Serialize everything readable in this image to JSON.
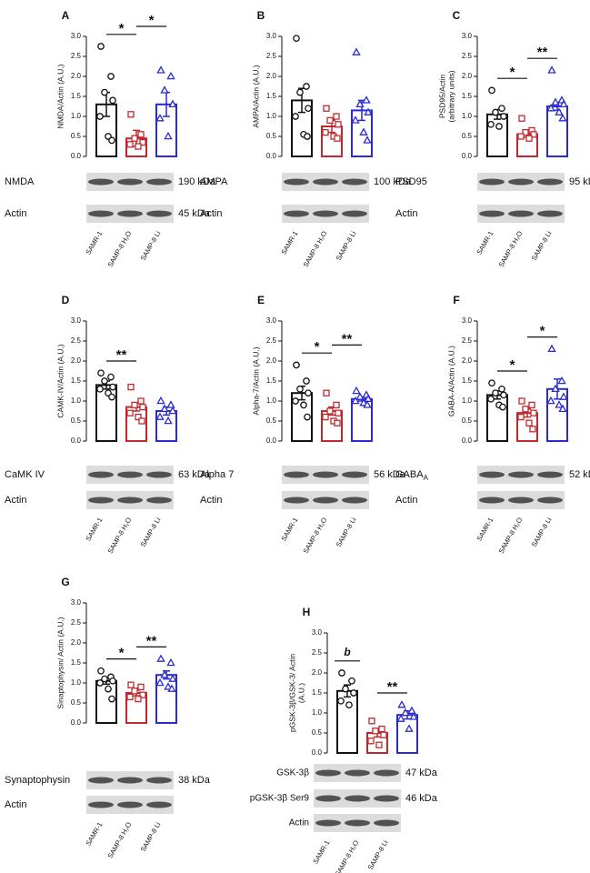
{
  "chart_data": [
    {
      "type": "bar",
      "panel": "A",
      "y_label": [
        "NMDA/Actin (A.U.)"
      ],
      "categories": [
        "SAMR-1",
        "SAMP-8 H₂O",
        "SAMP-8 Li"
      ],
      "colors": [
        "#111111",
        "#c0282d",
        "#2a2ad0"
      ],
      "markers": [
        "circle",
        "square",
        "triangle"
      ],
      "values": [
        1.3,
        0.45,
        1.3
      ],
      "errors": [
        0.3,
        0.2,
        0.3
      ],
      "points": [
        [
          2.75,
          2.0,
          1.6,
          1.4,
          1.0,
          0.5,
          0.4
        ],
        [
          1.05,
          0.55,
          0.45,
          0.35,
          0.3,
          0.25
        ],
        [
          2.15,
          2.0,
          1.65,
          1.3,
          0.95,
          0.5
        ]
      ],
      "ylim": [
        0,
        3
      ],
      "yticks": [
        {
          "value": 0,
          "label": "0.0"
        },
        0.5,
        {
          "value": 1,
          "label": "1.0"
        },
        1.5,
        {
          "value": 2,
          "label": "2.0"
        },
        2.5,
        {
          "value": 3,
          "label": "3.0"
        }
      ],
      "annotations": [
        {
          "text": "*",
          "bars": [
            0,
            1
          ]
        },
        {
          "text": "*",
          "bars": [
            1,
            2
          ]
        }
      ],
      "blots": [
        {
          "label": "NMDA",
          "kda": "190 kDa"
        },
        {
          "label": "Actin",
          "kda": "45 kDa"
        }
      ]
    },
    {
      "type": "bar",
      "panel": "B",
      "y_label": [
        "AMPA/Actin (A.U.)"
      ],
      "categories": [
        "SAMR-1",
        "SAMP-8 H₂O",
        "SAMP-8 Li"
      ],
      "colors": [
        "#111111",
        "#c0282d",
        "#2a2ad0"
      ],
      "markers": [
        "circle",
        "square",
        "triangle"
      ],
      "values": [
        1.4,
        0.75,
        1.15
      ],
      "errors": [
        0.3,
        0.15,
        0.25
      ],
      "points": [
        [
          2.95,
          1.75,
          1.6,
          1.2,
          1.0,
          0.55,
          0.5
        ],
        [
          1.2,
          1.0,
          0.9,
          0.8,
          0.6,
          0.5,
          0.45
        ],
        [
          2.6,
          1.4,
          1.3,
          1.1,
          0.9,
          0.6,
          0.4
        ]
      ],
      "ylim": [
        0,
        3
      ],
      "yticks": [
        {
          "value": 0,
          "label": "0.0"
        },
        0.5,
        {
          "value": 1,
          "label": "1.0"
        },
        1.5,
        {
          "value": 2,
          "label": "2.0"
        },
        2.5,
        {
          "value": 3,
          "label": "3.0"
        }
      ],
      "annotations": [],
      "blots": [
        {
          "label": "AMPA",
          "kda": "100 kDa"
        },
        {
          "label": "Actin"
        }
      ]
    },
    {
      "type": "bar",
      "panel": "C",
      "y_label": [
        "PSD95/Actin",
        "(arbitrary units)"
      ],
      "categories": [
        "SAMR-1",
        "SAMP-8 H₂O",
        "SAMP-8 Li"
      ],
      "colors": [
        "#111111",
        "#c0282d",
        "#2a2ad0"
      ],
      "markers": [
        "circle",
        "square",
        "triangle"
      ],
      "values": [
        1.05,
        0.55,
        1.25
      ],
      "errors": [
        0.12,
        0.07,
        0.1
      ],
      "points": [
        [
          1.65,
          1.2,
          1.1,
          1.0,
          0.8,
          0.75
        ],
        [
          0.95,
          0.65,
          0.6,
          0.55,
          0.5,
          0.45
        ],
        [
          2.15,
          1.4,
          1.35,
          1.3,
          1.2,
          1.1,
          0.95
        ]
      ],
      "ylim": [
        0,
        3
      ],
      "yticks": [
        {
          "value": 0,
          "label": "0.0"
        },
        0.5,
        {
          "value": 1,
          "label": "1.0"
        },
        1.5,
        {
          "value": 2,
          "label": "2.0"
        },
        2.5,
        {
          "value": 3,
          "label": "3.0"
        }
      ],
      "annotations": [
        {
          "text": "*",
          "bars": [
            0,
            1
          ]
        },
        {
          "text": "**",
          "bars": [
            1,
            2
          ]
        }
      ],
      "blots": [
        {
          "label": "PSD95",
          "kda": "95 kDa"
        },
        {
          "label": "Actin"
        }
      ]
    },
    {
      "type": "bar",
      "panel": "D",
      "y_label": [
        "CAMK-IV/Actin (A.U.)"
      ],
      "categories": [
        "SAMR-1",
        "SAMP-8 H₂O",
        "SAMP-8 Li"
      ],
      "colors": [
        "#111111",
        "#c0282d",
        "#2a2ad0"
      ],
      "markers": [
        "circle",
        "square",
        "triangle"
      ],
      "values": [
        1.4,
        0.85,
        0.75
      ],
      "errors": [
        0.1,
        0.1,
        0.1
      ],
      "points": [
        [
          1.7,
          1.6,
          1.5,
          1.35,
          1.3,
          1.2,
          1.1
        ],
        [
          1.35,
          1.0,
          0.9,
          0.85,
          0.7,
          0.6,
          0.5
        ],
        [
          1.0,
          0.9,
          0.8,
          0.75,
          0.6,
          0.5
        ]
      ],
      "ylim": [
        0,
        3
      ],
      "yticks": [
        {
          "value": 0,
          "label": "0.0"
        },
        0.5,
        {
          "value": 1,
          "label": "1.0"
        },
        1.5,
        {
          "value": 2,
          "label": "2.0"
        },
        2.5,
        {
          "value": 3,
          "label": "3.0"
        }
      ],
      "annotations": [
        {
          "text": "**",
          "bars": [
            0,
            1
          ]
        }
      ],
      "blots": [
        {
          "label": "CaMK IV",
          "kda": "63 kDa"
        },
        {
          "label": "Actin"
        }
      ]
    },
    {
      "type": "bar",
      "panel": "E",
      "y_label": [
        "Alpha-7/Actin (A.U.)"
      ],
      "categories": [
        "SAMR-1",
        "SAMP-8 H₂O",
        "SAMP-8 Li"
      ],
      "colors": [
        "#111111",
        "#c0282d",
        "#2a2ad0"
      ],
      "markers": [
        "circle",
        "square",
        "triangle"
      ],
      "values": [
        1.2,
        0.75,
        1.05
      ],
      "errors": [
        0.17,
        0.1,
        0.05
      ],
      "points": [
        [
          1.9,
          1.5,
          1.3,
          1.2,
          1.0,
          0.9,
          0.6
        ],
        [
          1.2,
          0.9,
          0.75,
          0.7,
          0.6,
          0.5,
          0.45
        ],
        [
          1.25,
          1.15,
          1.1,
          1.05,
          1.0,
          0.95,
          0.9
        ]
      ],
      "ylim": [
        0,
        3
      ],
      "yticks": [
        {
          "value": 0,
          "label": "0.0"
        },
        0.5,
        {
          "value": 1,
          "label": "1.0"
        },
        1.5,
        {
          "value": 2,
          "label": "2.0"
        },
        2.5,
        {
          "value": 3,
          "label": "3.0"
        }
      ],
      "annotations": [
        {
          "text": "*",
          "bars": [
            0,
            1
          ]
        },
        {
          "text": "**",
          "bars": [
            1,
            2
          ]
        }
      ],
      "blots": [
        {
          "label": "Alpha 7",
          "kda": "56 kDa"
        },
        {
          "label": "Actin"
        }
      ]
    },
    {
      "type": "bar",
      "panel": "F",
      "y_label": [
        "GABA-A/Actin (A.U.)"
      ],
      "categories": [
        "SAMR-1",
        "SAMP-8 H₂O",
        "SAMP-8 Li"
      ],
      "colors": [
        "#111111",
        "#c0282d",
        "#2a2ad0"
      ],
      "markers": [
        "circle",
        "square",
        "triangle"
      ],
      "values": [
        1.15,
        0.7,
        1.3
      ],
      "errors": [
        0.1,
        0.1,
        0.25
      ],
      "points": [
        [
          1.45,
          1.3,
          1.2,
          1.15,
          1.05,
          0.9,
          0.85
        ],
        [
          1.0,
          0.9,
          0.8,
          0.7,
          0.6,
          0.45,
          0.3
        ],
        [
          2.3,
          1.5,
          1.3,
          1.1,
          1.0,
          0.9,
          0.8
        ]
      ],
      "ylim": [
        0,
        3
      ],
      "yticks": [
        {
          "value": 0,
          "label": "0.0"
        },
        0.5,
        {
          "value": 1,
          "label": "1.0"
        },
        1.5,
        {
          "value": 2,
          "label": "2.0"
        },
        2.5,
        {
          "value": 3,
          "label": "3.0"
        }
      ],
      "annotations": [
        {
          "text": "*",
          "bars": [
            0,
            1
          ]
        },
        {
          "text": "*",
          "bars": [
            1,
            2
          ]
        }
      ],
      "blots": [
        {
          "label": "GABA",
          "label_sub": "A",
          "kda": "52 kDa"
        },
        {
          "label": "Actin"
        }
      ]
    },
    {
      "type": "bar",
      "panel": "G",
      "y_label": [
        "Sinaptophysin/ Actin (A.U.)"
      ],
      "categories": [
        "SAMR-1",
        "SAMP-8 H₂O",
        "SAMP-8 Li"
      ],
      "colors": [
        "#111111",
        "#c0282d",
        "#2a2ad0"
      ],
      "markers": [
        "circle",
        "square",
        "triangle"
      ],
      "values": [
        1.05,
        0.75,
        1.2
      ],
      "errors": [
        0.08,
        0.07,
        0.1
      ],
      "points": [
        [
          1.3,
          1.15,
          1.1,
          1.05,
          1.0,
          0.85,
          0.6
        ],
        [
          0.95,
          0.9,
          0.8,
          0.7,
          0.65,
          0.6
        ],
        [
          1.6,
          1.5,
          1.2,
          1.1,
          1.0,
          0.9,
          0.85
        ]
      ],
      "ylim": [
        0,
        3
      ],
      "yticks": [
        {
          "value": 0,
          "label": "0.0"
        },
        0.5,
        {
          "value": 1,
          "label": "1.0"
        },
        1.5,
        {
          "value": 2,
          "label": "2.0"
        },
        2.5,
        {
          "value": 3,
          "label": "3.0"
        }
      ],
      "annotations": [
        {
          "text": "*",
          "bars": [
            0,
            1
          ]
        },
        {
          "text": "**",
          "bars": [
            1,
            2
          ]
        }
      ],
      "blots": [
        {
          "label": "Synaptophysin",
          "kda": "38 kDa"
        },
        {
          "label": "Actin"
        }
      ]
    },
    {
      "type": "bar",
      "panel": "H",
      "y_label": [
        "pGSK-3β/GSK-3/ Actin",
        "(A.U.)"
      ],
      "categories": [
        "SAMR-1",
        "SAMP-8 H₂O",
        "SAMP-8 Li"
      ],
      "colors": [
        "#111111",
        "#c0282d",
        "#2a2ad0"
      ],
      "markers": [
        "circle",
        "square",
        "triangle"
      ],
      "values": [
        1.55,
        0.5,
        0.95
      ],
      "errors": [
        0.15,
        0.1,
        0.1
      ],
      "points": [
        [
          2.0,
          1.8,
          1.6,
          1.5,
          1.3,
          1.2
        ],
        [
          0.8,
          0.6,
          0.55,
          0.45,
          0.3,
          0.2
        ],
        [
          1.2,
          1.05,
          1.0,
          0.9,
          0.85,
          0.6
        ]
      ],
      "ylim": [
        0,
        3
      ],
      "yticks": [
        {
          "value": 0,
          "label": "0.0"
        },
        0.5,
        {
          "value": 1,
          "label": "1.0"
        },
        1.5,
        {
          "value": 2,
          "label": "2.0"
        },
        2.5,
        {
          "value": 3,
          "label": "3.0"
        }
      ],
      "annotations": [
        {
          "text": "b",
          "bars": [
            0
          ],
          "italic": true
        },
        {
          "text": "**",
          "bars": [
            1,
            2
          ]
        }
      ],
      "blots": [
        {
          "label": "GSK-3β",
          "kda": "47 kDa"
        },
        {
          "label": "pGSK-3β Ser9",
          "kda": "46 kDa"
        },
        {
          "label": "Actin"
        }
      ]
    }
  ]
}
